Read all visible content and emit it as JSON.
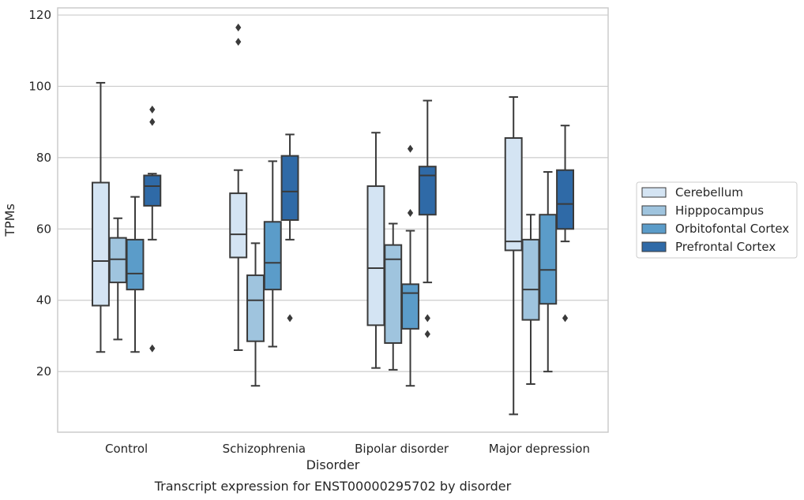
{
  "chart_data": {
    "type": "box",
    "title": "",
    "caption": "Transcript expression for ENST00000295702 by disorder",
    "xlabel": "Disorder",
    "ylabel": "TPMs",
    "ylim": [
      3,
      122
    ],
    "yticks": [
      20,
      40,
      60,
      80,
      100,
      120
    ],
    "grid": "horizontal",
    "legend_position": "right",
    "categories": [
      "Control",
      "Schizophrenia",
      "Bipolar disorder",
      "Major depression"
    ],
    "series": [
      {
        "name": "Cerebellum",
        "color": "#d4e4f3",
        "boxes": [
          {
            "whisker_low": 25.5,
            "q1": 38.5,
            "median": 51,
            "q3": 73,
            "whisker_high": 101,
            "outliers": []
          },
          {
            "whisker_low": 26,
            "q1": 52,
            "median": 58.5,
            "q3": 70,
            "whisker_high": 76.5,
            "outliers": [
              112.5,
              116.5
            ]
          },
          {
            "whisker_low": 21,
            "q1": 33,
            "median": 49,
            "q3": 72,
            "whisker_high": 87,
            "outliers": []
          },
          {
            "whisker_low": 8,
            "q1": 54,
            "median": 56.5,
            "q3": 85.5,
            "whisker_high": 97,
            "outliers": []
          }
        ]
      },
      {
        "name": "Hipppocampus",
        "color": "#9fc4de",
        "boxes": [
          {
            "whisker_low": 29,
            "q1": 45,
            "median": 51.5,
            "q3": 57.5,
            "whisker_high": 63,
            "outliers": []
          },
          {
            "whisker_low": 16,
            "q1": 28.5,
            "median": 40,
            "q3": 47,
            "whisker_high": 56,
            "outliers": []
          },
          {
            "whisker_low": 20.5,
            "q1": 28,
            "median": 51.5,
            "q3": 55.5,
            "whisker_high": 61.5,
            "outliers": []
          },
          {
            "whisker_low": 16.5,
            "q1": 34.5,
            "median": 43,
            "q3": 57,
            "whisker_high": 64,
            "outliers": []
          }
        ]
      },
      {
        "name": "Orbitofontal Cortex",
        "color": "#5b9cc9",
        "boxes": [
          {
            "whisker_low": 25.5,
            "q1": 43,
            "median": 47.5,
            "q3": 57,
            "whisker_high": 69,
            "outliers": []
          },
          {
            "whisker_low": 27,
            "q1": 43,
            "median": 50.5,
            "q3": 62,
            "whisker_high": 79,
            "outliers": []
          },
          {
            "whisker_low": 16,
            "q1": 32,
            "median": 42,
            "q3": 44.5,
            "whisker_high": 59.5,
            "outliers": [
              64.5,
              82.5
            ]
          },
          {
            "whisker_low": 20,
            "q1": 39,
            "median": 48.5,
            "q3": 64,
            "whisker_high": 76,
            "outliers": []
          }
        ]
      },
      {
        "name": "Prefrontal Cortex",
        "color": "#2f6aa7",
        "boxes": [
          {
            "whisker_low": 57,
            "q1": 66.5,
            "median": 72,
            "q3": 75,
            "whisker_high": 75.5,
            "outliers": [
              26.5,
              90,
              93.5
            ]
          },
          {
            "whisker_low": 57,
            "q1": 62.5,
            "median": 70.5,
            "q3": 80.5,
            "whisker_high": 86.5,
            "outliers": [
              35
            ]
          },
          {
            "whisker_low": 45,
            "q1": 64,
            "median": 75,
            "q3": 77.5,
            "whisker_high": 96,
            "outliers": [
              30.5,
              35
            ]
          },
          {
            "whisker_low": 56.5,
            "q1": 60,
            "median": 67,
            "q3": 76.5,
            "whisker_high": 89,
            "outliers": [
              35
            ]
          }
        ]
      }
    ]
  }
}
